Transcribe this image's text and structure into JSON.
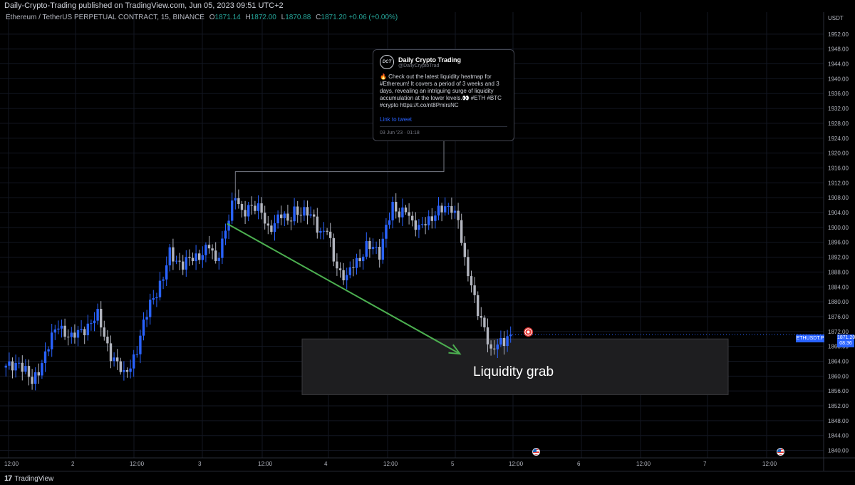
{
  "header": {
    "published": "Daily-Crypto-Trading published on TradingView.com, Jun 05, 2023 09:51 UTC+2"
  },
  "symbol_line": {
    "name": "Ethereum / TetherUS PERPETUAL CONTRACT, 15, BINANCE",
    "open_label": "O",
    "open": "1871.14",
    "high_label": "H",
    "high": "1872.00",
    "low_label": "L",
    "low": "1870.88",
    "close_label": "C",
    "close": "1871.20",
    "change": "+0.06 (+0.00%)"
  },
  "currency": "USDT",
  "tweet": {
    "avatar_text": "DCT",
    "name": "Daily Crypto Trading",
    "handle": "@DailyCryptoTrad",
    "text": "🔥 Check out the latest liquidity heatmap for #Ethereum! It covers a period of 3 weeks and 3 days, revealing an intriguing surge of liquidity accumulation at the lower levels.👀 #ETH #BTC #crypto https://t.co/nt8PmlrsNC",
    "link_label": "Link to tweet",
    "date": "03 Jun '23 · 01:18"
  },
  "annotation": {
    "label": "Liquidity grab"
  },
  "price_badge": {
    "symbol": "ETHUSDT.P",
    "price": "1871.20",
    "countdown": "08:36"
  },
  "footer": {
    "logo_mark": "17",
    "logo_text": "TradingView"
  },
  "colors": {
    "background": "#000000",
    "up_candle": "#2962ff",
    "down_candle": "#b2b5be",
    "arrow": "#4caf50",
    "zone": "#1e1e20",
    "grid": "#131722",
    "axis_text": "#b2b5be"
  },
  "chart_data": {
    "type": "candlestick",
    "ylim": [
      1838,
      1956
    ],
    "y_ticks": [
      1840,
      1844,
      1848,
      1852,
      1856,
      1860,
      1864,
      1868,
      1872,
      1876,
      1880,
      1884,
      1888,
      1892,
      1896,
      1900,
      1904,
      1908,
      1912,
      1916,
      1920,
      1924,
      1928,
      1932,
      1936,
      1940,
      1944,
      1948,
      1952
    ],
    "x_ticks": [
      "12:00",
      "2",
      "12:00",
      "3",
      "12:00",
      "4",
      "12:00",
      "5",
      "12:00",
      "6",
      "12:00",
      "7",
      "12:00"
    ],
    "close_path": [
      [
        0,
        1862
      ],
      [
        4,
        1864
      ],
      [
        8,
        1858
      ],
      [
        12,
        1866
      ],
      [
        16,
        1874
      ],
      [
        20,
        1870
      ],
      [
        24,
        1873
      ],
      [
        28,
        1876
      ],
      [
        32,
        1866
      ],
      [
        36,
        1860
      ],
      [
        40,
        1867
      ],
      [
        44,
        1880
      ],
      [
        48,
        1886
      ],
      [
        50,
        1893
      ],
      [
        54,
        1890
      ],
      [
        58,
        1892
      ],
      [
        62,
        1895
      ],
      [
        64,
        1890
      ],
      [
        67,
        1900
      ],
      [
        70,
        1908
      ],
      [
        72,
        1904
      ],
      [
        74,
        1906
      ],
      [
        76,
        1905
      ],
      [
        78,
        1904
      ],
      [
        80,
        1900
      ],
      [
        82,
        1901
      ],
      [
        84,
        1903
      ],
      [
        86,
        1902
      ],
      [
        88,
        1905
      ],
      [
        90,
        1903
      ],
      [
        92,
        1904
      ],
      [
        94,
        1903
      ],
      [
        96,
        1898
      ],
      [
        98,
        1899
      ],
      [
        100,
        1892
      ],
      [
        102,
        1888
      ],
      [
        104,
        1886
      ],
      [
        106,
        1890
      ],
      [
        108,
        1892
      ],
      [
        110,
        1895
      ],
      [
        112,
        1894
      ],
      [
        114,
        1893
      ],
      [
        116,
        1901
      ],
      [
        118,
        1905
      ],
      [
        120,
        1903
      ],
      [
        122,
        1906
      ],
      [
        124,
        1901
      ],
      [
        126,
        1899
      ],
      [
        128,
        1902
      ],
      [
        130,
        1903
      ],
      [
        132,
        1904
      ],
      [
        134,
        1905
      ],
      [
        136,
        1906
      ],
      [
        138,
        1902
      ],
      [
        140,
        1890
      ],
      [
        142,
        1885
      ],
      [
        144,
        1878
      ],
      [
        146,
        1872
      ],
      [
        148,
        1866
      ],
      [
        150,
        1870
      ],
      [
        152,
        1869
      ],
      [
        154,
        1871
      ]
    ],
    "support_zone": {
      "y_low": 1855,
      "y_high": 1870
    },
    "arrow": {
      "from": [
        68,
        1901
      ],
      "to": [
        139,
        1866
      ]
    },
    "callout_line": {
      "start": [
        70,
        1908
      ],
      "elbow_y": 1915
    }
  }
}
